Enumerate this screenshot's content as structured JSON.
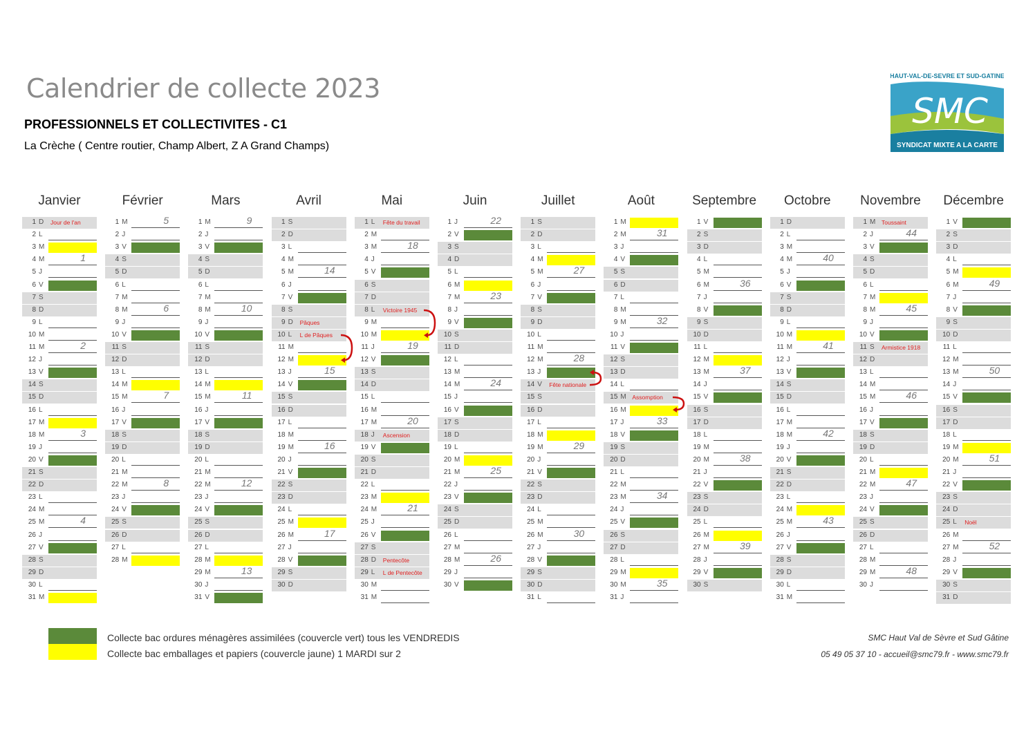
{
  "title": "Calendrier de collecte 2023",
  "subtitle": "PROFESSIONNELS ET COLLECTIVITES - C1",
  "location": "La Crèche ( Centre routier, Champ Albert, Z A Grand Champs)",
  "logo": {
    "top_text": "HAUT-VAL-DE-SEVRE ET SUD-GATINE",
    "main_text": "SMC",
    "bottom_text": "SYNDICAT MIXTE A LA CARTE",
    "colors": {
      "blue": "#3aa3c8",
      "green": "#9bc33c",
      "dark_blue": "#1a7fa0"
    }
  },
  "colors": {
    "green": "#5b8a3a",
    "yellow": "#ffff00",
    "weekend": "#dcdcdc",
    "holiday_text": "#e02020",
    "arrow": "#cc1111"
  },
  "months": [
    {
      "name": "Janvier",
      "days": 31,
      "first_weekday": 6,
      "green": [
        6,
        13,
        20,
        27
      ],
      "yellow": [
        3,
        17,
        31
      ],
      "holidays": {
        "1": "Jour de l'an"
      },
      "weeks": [
        {
          "n": "1",
          "day": 4
        },
        {
          "n": "2",
          "day": 11
        },
        {
          "n": "3",
          "day": 18
        },
        {
          "n": "4",
          "day": 25
        }
      ]
    },
    {
      "name": "Février",
      "days": 28,
      "first_weekday": 2,
      "green": [
        3,
        10,
        17,
        24
      ],
      "yellow": [
        14,
        28
      ],
      "holidays": {},
      "weeks": [
        {
          "n": "5",
          "day": 1
        },
        {
          "n": "6",
          "day": 8
        },
        {
          "n": "7",
          "day": 15
        },
        {
          "n": "8",
          "day": 22
        }
      ]
    },
    {
      "name": "Mars",
      "days": 31,
      "first_weekday": 2,
      "green": [
        3,
        10,
        17,
        24,
        31
      ],
      "yellow": [
        14,
        28
      ],
      "holidays": {},
      "weeks": [
        {
          "n": "9",
          "day": 1
        },
        {
          "n": "10",
          "day": 8
        },
        {
          "n": "11",
          "day": 15
        },
        {
          "n": "12",
          "day": 22
        },
        {
          "n": "13",
          "day": 29
        }
      ]
    },
    {
      "name": "Avril",
      "days": 30,
      "first_weekday": 5,
      "green": [
        7,
        14,
        21,
        28
      ],
      "yellow": [
        12,
        25
      ],
      "holidays": {
        "9": "Pâques",
        "10": "L de Pâques"
      },
      "weeks": [
        {
          "n": "14",
          "day": 5
        },
        {
          "n": "15",
          "day": 13
        },
        {
          "n": "16",
          "day": 19
        },
        {
          "n": "17",
          "day": 26
        }
      ],
      "arrows": [
        {
          "from": 10,
          "to": 12
        }
      ]
    },
    {
      "name": "Mai",
      "days": 31,
      "first_weekday": 0,
      "green": [
        5,
        12,
        19,
        26
      ],
      "yellow": [
        10,
        23
      ],
      "holidays": {
        "1": "Fête du travail",
        "8": "Victoire 1945",
        "18": "Ascension",
        "28": "Pentecôte",
        "29": "L de Pentecôte"
      },
      "weeks": [
        {
          "n": "18",
          "day": 3
        },
        {
          "n": "19",
          "day": 11
        },
        {
          "n": "20",
          "day": 17
        },
        {
          "n": "21",
          "day": 24
        }
      ],
      "arrows": [
        {
          "from": 8,
          "to": 10
        }
      ]
    },
    {
      "name": "Juin",
      "days": 30,
      "first_weekday": 3,
      "green": [
        2,
        9,
        16,
        23,
        30
      ],
      "yellow": [
        6,
        20
      ],
      "holidays": {},
      "weeks": [
        {
          "n": "22",
          "day": 1
        },
        {
          "n": "23",
          "day": 7
        },
        {
          "n": "24",
          "day": 14
        },
        {
          "n": "25",
          "day": 21
        },
        {
          "n": "26",
          "day": 28
        }
      ]
    },
    {
      "name": "Juillet",
      "days": 31,
      "first_weekday": 5,
      "green": [
        7,
        13,
        21,
        28
      ],
      "yellow": [
        4,
        18
      ],
      "holidays": {
        "14": "Fête nationale"
      },
      "weeks": [
        {
          "n": "27",
          "day": 5
        },
        {
          "n": "28",
          "day": 12
        },
        {
          "n": "29",
          "day": 19
        },
        {
          "n": "30",
          "day": 26
        }
      ],
      "arrows": [
        {
          "from": 14,
          "to": 13
        }
      ]
    },
    {
      "name": "Août",
      "days": 31,
      "first_weekday": 1,
      "green": [
        4,
        11,
        18,
        25
      ],
      "yellow": [
        1,
        16,
        29
      ],
      "holidays": {
        "15": "Assomption"
      },
      "weeks": [
        {
          "n": "31",
          "day": 2
        },
        {
          "n": "32",
          "day": 9
        },
        {
          "n": "33",
          "day": 17
        },
        {
          "n": "34",
          "day": 23
        },
        {
          "n": "35",
          "day": 30
        }
      ],
      "arrows": [
        {
          "from": 15,
          "to": 16
        }
      ]
    },
    {
      "name": "Septembre",
      "days": 30,
      "first_weekday": 4,
      "green": [
        1,
        8,
        15,
        22,
        29
      ],
      "yellow": [
        12,
        26
      ],
      "holidays": {},
      "weeks": [
        {
          "n": "36",
          "day": 6
        },
        {
          "n": "37",
          "day": 13
        },
        {
          "n": "38",
          "day": 20
        },
        {
          "n": "39",
          "day": 27
        }
      ]
    },
    {
      "name": "Octobre",
      "days": 31,
      "first_weekday": 6,
      "green": [
        6,
        13,
        20,
        27
      ],
      "yellow": [
        10,
        24
      ],
      "holidays": {},
      "weeks": [
        {
          "n": "40",
          "day": 4
        },
        {
          "n": "41",
          "day": 11
        },
        {
          "n": "42",
          "day": 18
        },
        {
          "n": "43",
          "day": 25
        }
      ]
    },
    {
      "name": "Novembre",
      "days": 30,
      "first_weekday": 2,
      "green": [
        3,
        10,
        17,
        24
      ],
      "yellow": [
        7,
        21
      ],
      "holidays": {
        "1": "Toussaint",
        "11": "Armistice 1918"
      },
      "weeks": [
        {
          "n": "44",
          "day": 2
        },
        {
          "n": "45",
          "day": 8
        },
        {
          "n": "46",
          "day": 15
        },
        {
          "n": "47",
          "day": 22
        },
        {
          "n": "48",
          "day": 29
        }
      ]
    },
    {
      "name": "Décembre",
      "days": 31,
      "first_weekday": 4,
      "green": [
        1,
        8,
        15,
        22,
        29
      ],
      "yellow": [
        5,
        19
      ],
      "holidays": {
        "25": "Noël"
      },
      "weeks": [
        {
          "n": "49",
          "day": 6
        },
        {
          "n": "50",
          "day": 13
        },
        {
          "n": "51",
          "day": 20
        },
        {
          "n": "52",
          "day": 27
        }
      ]
    }
  ],
  "day_letters": [
    "L",
    "M",
    "M",
    "J",
    "V",
    "S",
    "D"
  ],
  "legend": {
    "green": "Collecte bac ordures ménagères assimilées (couvercle vert) tous les VENDREDIS",
    "yellow": "Collecte bac emballages et papiers (couvercle jaune) 1 MARDI sur 2"
  },
  "footer": {
    "organization": "SMC Haut Val de Sèvre et Sud Gâtine",
    "contact": "05 49 05 37 10 - accueil@smc79.fr - www.smc79.fr"
  }
}
